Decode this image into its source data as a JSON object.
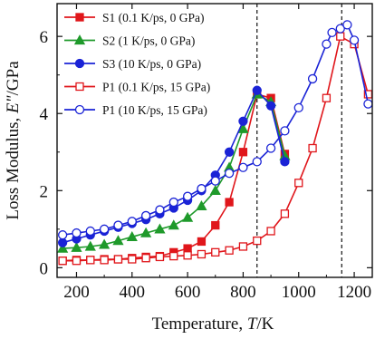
{
  "chart_data": {
    "type": "line",
    "title": "",
    "xlabel_prefix": "Temperature, ",
    "xlabel_var": "T",
    "xlabel_unit": "/K",
    "ylabel_prefix": "Loss Modulus, ",
    "ylabel_var": "E\"",
    "ylabel_unit": "/GPa",
    "xlim": [
      130,
      1265
    ],
    "ylim": [
      -0.25,
      6.85
    ],
    "xticks": [
      200,
      400,
      600,
      800,
      1000,
      1200
    ],
    "yticks": [
      0,
      2,
      4,
      6
    ],
    "grid": false,
    "legend_position": "top-left",
    "vlines": [
      850,
      1155
    ],
    "series": [
      {
        "name": "S1 (0.1 K/ps, 0 GPa)",
        "color": "#e0161b",
        "marker": "square",
        "filled": true,
        "x": [
          150,
          200,
          250,
          300,
          350,
          400,
          450,
          500,
          550,
          600,
          650,
          700,
          750,
          800,
          850,
          900,
          950
        ],
        "y": [
          0.18,
          0.2,
          0.2,
          0.22,
          0.22,
          0.25,
          0.28,
          0.3,
          0.4,
          0.5,
          0.68,
          1.1,
          1.7,
          3.0,
          4.5,
          4.4,
          2.95
        ]
      },
      {
        "name": "S2 (1 K/ps, 0 GPa)",
        "color": "#1f9a2b",
        "marker": "triangle",
        "filled": true,
        "x": [
          150,
          200,
          250,
          300,
          350,
          400,
          450,
          500,
          550,
          600,
          650,
          700,
          750,
          800,
          850,
          900,
          950
        ],
        "y": [
          0.5,
          0.52,
          0.55,
          0.6,
          0.7,
          0.8,
          0.9,
          1.0,
          1.1,
          1.3,
          1.6,
          2.0,
          2.6,
          3.6,
          4.5,
          4.3,
          2.9
        ]
      },
      {
        "name": "S3 (10 K/ps, 0 GPa)",
        "color": "#1a23d6",
        "marker": "circle",
        "filled": true,
        "x": [
          150,
          200,
          250,
          300,
          350,
          400,
          450,
          500,
          550,
          600,
          650,
          700,
          750,
          800,
          850,
          900,
          950
        ],
        "y": [
          0.65,
          0.75,
          0.85,
          0.95,
          1.05,
          1.15,
          1.25,
          1.4,
          1.55,
          1.75,
          2.0,
          2.4,
          3.0,
          3.8,
          4.6,
          4.2,
          2.75
        ]
      },
      {
        "name": "P1 (0.1 K/ps, 15 GPa)",
        "color": "#e0161b",
        "marker": "square",
        "filled": false,
        "x": [
          150,
          200,
          250,
          300,
          350,
          400,
          450,
          500,
          550,
          600,
          650,
          700,
          750,
          800,
          850,
          900,
          950,
          1000,
          1050,
          1100,
          1150,
          1200,
          1250
        ],
        "y": [
          0.18,
          0.18,
          0.2,
          0.2,
          0.22,
          0.22,
          0.25,
          0.28,
          0.3,
          0.32,
          0.35,
          0.4,
          0.45,
          0.55,
          0.7,
          0.95,
          1.4,
          2.2,
          3.1,
          4.4,
          6.0,
          5.8,
          4.5
        ]
      },
      {
        "name": "P1 (10 K/ps, 15 GPa)",
        "color": "#1a23d6",
        "marker": "circle",
        "filled": false,
        "x": [
          150,
          200,
          250,
          300,
          350,
          400,
          450,
          500,
          550,
          600,
          650,
          700,
          750,
          800,
          850,
          900,
          950,
          1000,
          1050,
          1100,
          1120,
          1150,
          1175,
          1200,
          1250
        ],
        "y": [
          0.85,
          0.9,
          0.95,
          1.0,
          1.1,
          1.2,
          1.35,
          1.5,
          1.7,
          1.85,
          2.05,
          2.25,
          2.45,
          2.6,
          2.75,
          3.1,
          3.55,
          4.15,
          4.9,
          5.8,
          6.1,
          6.2,
          6.3,
          5.9,
          4.25
        ]
      }
    ]
  }
}
